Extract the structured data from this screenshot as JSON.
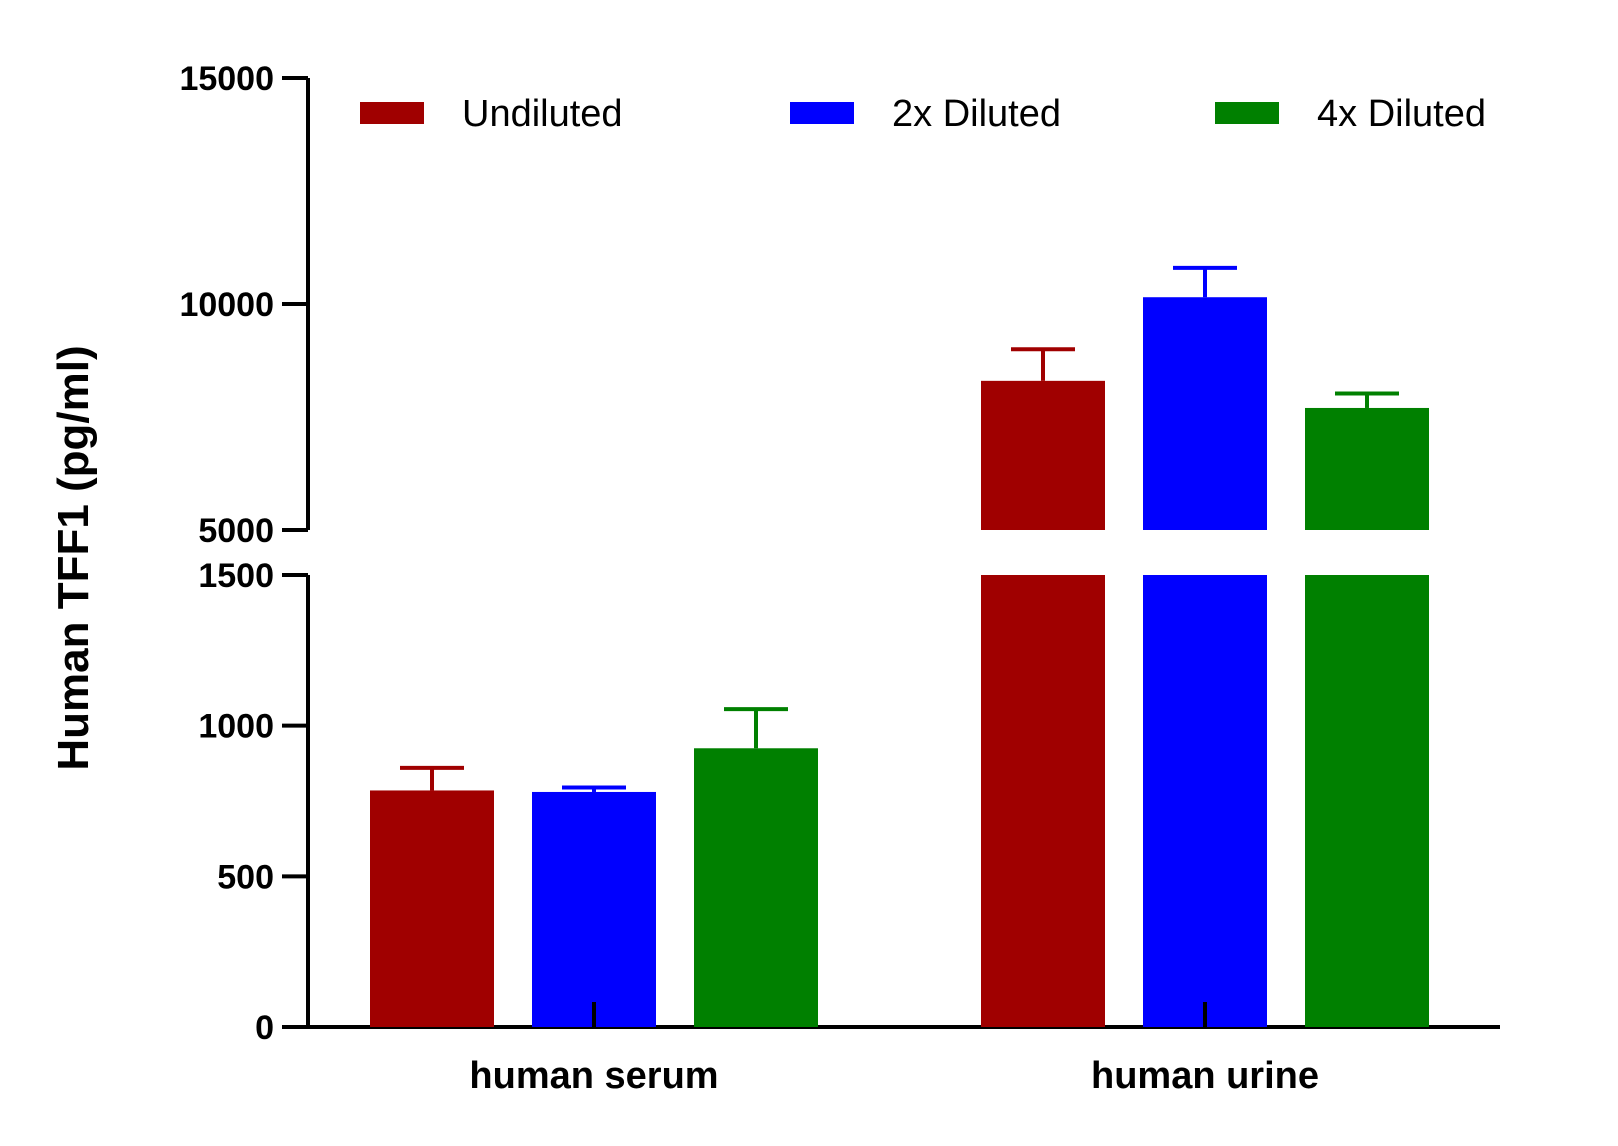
{
  "chart_data": {
    "type": "bar",
    "title": "",
    "xlabel": "",
    "ylabel": "Human TFF1 (pg/ml)",
    "categories": [
      "human serum",
      "human urine"
    ],
    "y_axis": {
      "broken": true,
      "lower_segment": {
        "range": [
          0,
          1500
        ],
        "ticks": [
          0,
          500,
          1000,
          1500
        ],
        "tick_labels": [
          "0",
          "500",
          "1000",
          "1500"
        ]
      },
      "upper_segment": {
        "range": [
          5000,
          15000
        ],
        "ticks": [
          5000,
          10000,
          15000
        ],
        "tick_labels": [
          "5000",
          "10000",
          "15000"
        ]
      }
    },
    "legend_position": "top",
    "series": [
      {
        "name": "Undiluted",
        "color": "#a00000",
        "values": [
          785,
          8300
        ],
        "error_plus": [
          75,
          700
        ]
      },
      {
        "name": "2x Diluted",
        "color": "#0000ff",
        "values": [
          780,
          10150
        ],
        "error_plus": [
          15,
          650
        ]
      },
      {
        "name": "4x Diluted",
        "color": "#008000",
        "values": [
          925,
          7700
        ],
        "error_plus": [
          130,
          320
        ]
      }
    ],
    "grid": false
  }
}
